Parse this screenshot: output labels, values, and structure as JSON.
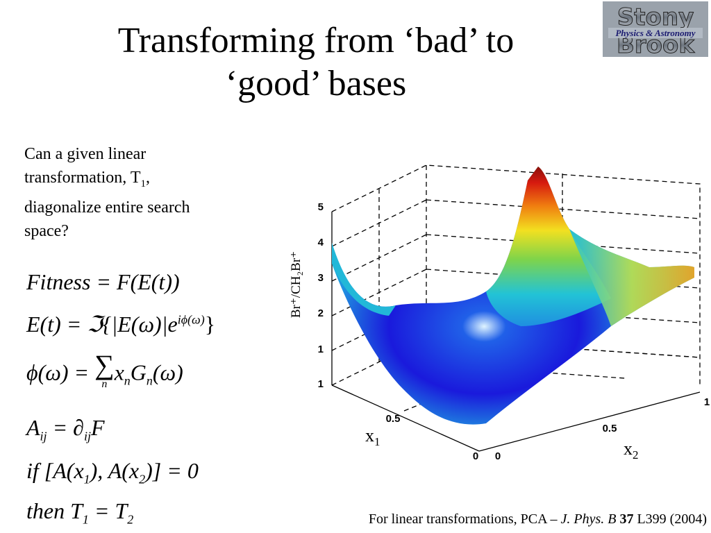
{
  "slide": {
    "title_line1": "Transforming from ‘bad’ to",
    "title_line2": "‘good’ bases",
    "logo_text": "Stony Brook Physics & Astronomy",
    "question": {
      "line1": "Can a given linear",
      "line2a": "transformation, T",
      "line2sub": "1",
      "line2b": ",",
      "line3": "diagonalize entire search",
      "line4": "space?"
    }
  },
  "equations": {
    "fitness": {
      "lhs": "Fitness",
      "rhs": "= F(E(t))"
    },
    "field": {
      "lhs": "E(t) = ℑ{|E(ω)|e",
      "sup": "iϕ(ω)",
      "tail": "}"
    },
    "phase": {
      "lhs": "ϕ(ω) = ",
      "sum": "∑",
      "sum_index": "n",
      "body": "x",
      "sub1": "n",
      "body2": "G",
      "sub2": "n",
      "tail": "(ω)"
    },
    "hessian": {
      "lhs": "A",
      "sub": "ij",
      "mid": " = ∂",
      "sub2": "ij",
      "tail": "F"
    },
    "condition": {
      "text": "if [A(x",
      "s1": "1",
      "mid": "), A(x",
      "s2": "2",
      "tail": ")] = 0"
    },
    "conclusion": {
      "text": "then  T",
      "s1": "1",
      "mid": " = T",
      "s2": "2"
    }
  },
  "plot": {
    "y_axis_label": "Br⁺/CH₂Br⁺",
    "z_ticks": [
      "1",
      "2",
      "3",
      "4",
      "5"
    ],
    "x1_label": "x",
    "x1_sub": "1",
    "x2_label": "x",
    "x2_sub": "2",
    "x1_ticks": [
      "0",
      "0.5",
      "1"
    ],
    "x2_ticks": [
      "0",
      "0.5",
      "1"
    ],
    "colors": {
      "low": "#1a1adc",
      "mid": "#22c3d6",
      "high": "#d61a0f",
      "grid": "#000000"
    }
  },
  "citation": {
    "prefix": "For linear transformations, PCA – ",
    "journal": "J. Phys. B",
    "volume": "37",
    "suffix": " L399 (2004)"
  }
}
